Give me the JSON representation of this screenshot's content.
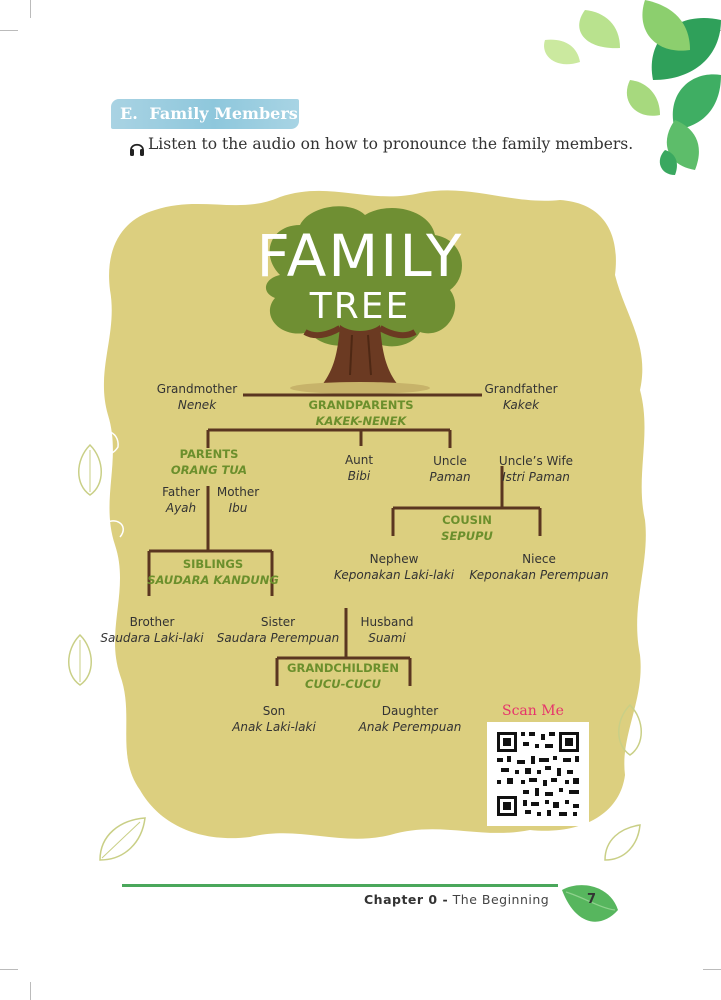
{
  "section": {
    "letter": "E.",
    "title": "Family Members"
  },
  "intro": {
    "icon": "headphones-icon",
    "text": "Listen to the audio on how to pronounce the family members."
  },
  "tree_title": {
    "line1": "FAMILY",
    "line2": "TREE"
  },
  "members": {
    "grandmother": {
      "en": "Grandmother",
      "id": "Nenek"
    },
    "grandfather": {
      "en": "Grandfather",
      "id": "Kakek"
    },
    "aunt": {
      "en": "Aunt",
      "id": "Bibi"
    },
    "uncle": {
      "en": "Uncle",
      "id": "Paman"
    },
    "uncles_wife": {
      "en": "Uncle’s Wife",
      "id": "Istri Paman"
    },
    "father": {
      "en": "Father",
      "id": "Ayah"
    },
    "mother": {
      "en": "Mother",
      "id": "Ibu"
    },
    "nephew": {
      "en": "Nephew",
      "id": "Keponakan Laki-laki"
    },
    "niece": {
      "en": "Niece",
      "id": "Keponakan Perempuan"
    },
    "brother": {
      "en": "Brother",
      "id": "Saudara Laki-laki"
    },
    "sister": {
      "en": "Sister",
      "id": "Saudara Perempuan"
    },
    "husband": {
      "en": "Husband",
      "id": "Suami"
    },
    "son": {
      "en": "Son",
      "id": "Anak Laki-laki"
    },
    "daughter": {
      "en": "Daughter",
      "id": "Anak Perempuan"
    }
  },
  "groups": {
    "grandparents": {
      "en": "GRANDPARENTS",
      "id": "KAKEK-NENEK"
    },
    "parents": {
      "en": "PARENTS",
      "id": "ORANG TUA"
    },
    "cousin": {
      "en": "COUSIN",
      "id": "SEPUPU"
    },
    "siblings": {
      "en": "SIBLINGS",
      "id": "SAUDARA KANDUNG"
    },
    "grandchildren": {
      "en": "GRANDCHILDREN",
      "id": "CUCU-CUCU"
    }
  },
  "qr": {
    "label": "Scan Me"
  },
  "footer": {
    "chapter": "Chapter 0 -",
    "title": "The Beginning",
    "page": "7"
  },
  "colors": {
    "accent_green": "#6b8f2c",
    "tab_blue": "#8ec7dc",
    "blob": "#dccf7f",
    "scan_pink": "#e6336b",
    "footer_green": "#4aa75b"
  }
}
